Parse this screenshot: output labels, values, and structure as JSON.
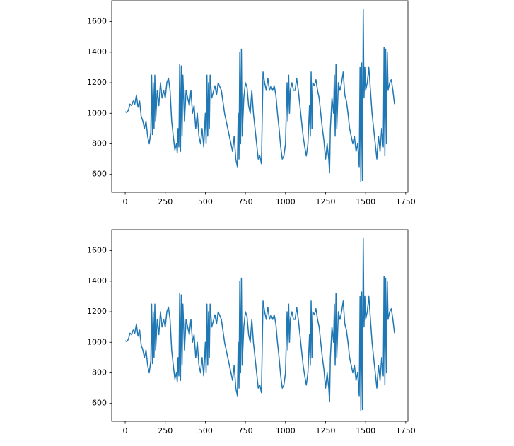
{
  "chart_data": [
    {
      "type": "line",
      "x": [
        0,
        10,
        20,
        30,
        40,
        50,
        60,
        70,
        80,
        90,
        100,
        110,
        120,
        130,
        140,
        150,
        160,
        165,
        170,
        175,
        180,
        185,
        190,
        200,
        210,
        220,
        230,
        240,
        250,
        260,
        270,
        280,
        290,
        300,
        310,
        320,
        325,
        330,
        335,
        340,
        345,
        350,
        355,
        360,
        370,
        380,
        390,
        400,
        410,
        420,
        430,
        440,
        450,
        460,
        470,
        480,
        490,
        500,
        505,
        510,
        515,
        520,
        525,
        530,
        540,
        560,
        570,
        580,
        600,
        620,
        640,
        660,
        670,
        680,
        690,
        700,
        705,
        710,
        715,
        720,
        725,
        730,
        740,
        750,
        760,
        770,
        780,
        790,
        800,
        810,
        820,
        830,
        840,
        850,
        860,
        870,
        880,
        890,
        900,
        910,
        920,
        930,
        940,
        950,
        960,
        970,
        980,
        990,
        1000,
        1010,
        1015,
        1020,
        1025,
        1030,
        1040,
        1050,
        1060,
        1070,
        1080,
        1090,
        1100,
        1110,
        1120,
        1130,
        1140,
        1150,
        1155,
        1160,
        1165,
        1170,
        1180,
        1190,
        1200,
        1210,
        1220,
        1230,
        1240,
        1250,
        1260,
        1270,
        1275,
        1280,
        1290,
        1300,
        1305,
        1310,
        1315,
        1320,
        1330,
        1340,
        1350,
        1360,
        1370,
        1380,
        1390,
        1400,
        1410,
        1420,
        1430,
        1440,
        1450,
        1460,
        1465,
        1470,
        1475,
        1480,
        1485,
        1490,
        1495,
        1500,
        1510,
        1520,
        1530,
        1540,
        1550,
        1560,
        1570,
        1580,
        1590,
        1600,
        1610,
        1615,
        1620,
        1625,
        1630,
        1635,
        1640,
        1650,
        1660,
        1670,
        1680
      ],
      "series": [
        {
          "color": "#1f77b4",
          "values": [
            1010,
            1005,
            1020,
            1060,
            1050,
            1080,
            1060,
            1120,
            1040,
            1080,
            980,
            950,
            900,
            950,
            850,
            800,
            880,
            1250,
            860,
            1200,
            900,
            1250,
            950,
            1150,
            1050,
            1200,
            1100,
            1150,
            1100,
            1200,
            1230,
            1150,
            950,
            850,
            760,
            800,
            740,
            900,
            780,
            1320,
            750,
            1310,
            850,
            1250,
            950,
            1150,
            1100,
            1050,
            1150,
            1000,
            1050,
            900,
            1000,
            850,
            800,
            900,
            780,
            1000,
            800,
            1250,
            850,
            1200,
            900,
            1250,
            1100,
            1180,
            1120,
            1200,
            1150,
            1000,
            900,
            800,
            750,
            850,
            700,
            650,
            1000,
            700,
            1400,
            800,
            1420,
            850,
            1100,
            1200,
            1170,
            1050,
            1000,
            1150,
            1000,
            900,
            800,
            700,
            720,
            670,
            1270,
            1200,
            1150,
            1230,
            1150,
            1180,
            1150,
            1180,
            1120,
            1000,
            900,
            780,
            700,
            720,
            800,
            1200,
            950,
            1250,
            1000,
            1150,
            1200,
            1150,
            1150,
            1230,
            1150,
            1050,
            950,
            850,
            780,
            720,
            800,
            1050,
            850,
            1270,
            900,
            1200,
            1180,
            1220,
            1150,
            1100,
            1000,
            900,
            820,
            700,
            800,
            700,
            610,
            900,
            1100,
            1000,
            1250,
            850,
            1320,
            900,
            1200,
            1150,
            1200,
            1270,
            1120,
            1080,
            1000,
            900,
            850,
            800,
            850,
            750,
            800,
            650,
            1300,
            550,
            1330,
            560,
            1680,
            1100,
            1300,
            1150,
            1200,
            1300,
            1150,
            1000,
            900,
            800,
            700,
            850,
            750,
            900,
            780,
            1430,
            720,
            1420,
            800,
            1400,
            1150,
            1200,
            1220,
            1150,
            1060
          ]
        }
      ],
      "xlim": [
        -84,
        1764
      ],
      "ylim": [
        483,
        1737
      ],
      "xticks": [
        0,
        250,
        500,
        750,
        1000,
        1250,
        1500,
        1750
      ],
      "yticks": [
        600,
        800,
        1000,
        1200,
        1400,
        1600
      ]
    },
    {
      "type": "line",
      "x": [
        0,
        10,
        20,
        30,
        40,
        50,
        60,
        70,
        80,
        90,
        100,
        110,
        120,
        130,
        140,
        150,
        160,
        165,
        170,
        175,
        180,
        185,
        190,
        200,
        210,
        220,
        230,
        240,
        250,
        260,
        270,
        280,
        290,
        300,
        310,
        320,
        325,
        330,
        335,
        340,
        345,
        350,
        355,
        360,
        370,
        380,
        390,
        400,
        410,
        420,
        430,
        440,
        450,
        460,
        470,
        480,
        490,
        500,
        505,
        510,
        515,
        520,
        525,
        530,
        540,
        560,
        570,
        580,
        600,
        620,
        640,
        660,
        670,
        680,
        690,
        700,
        705,
        710,
        715,
        720,
        725,
        730,
        740,
        750,
        760,
        770,
        780,
        790,
        800,
        810,
        820,
        830,
        840,
        850,
        860,
        870,
        880,
        890,
        900,
        910,
        920,
        930,
        940,
        950,
        960,
        970,
        980,
        990,
        1000,
        1010,
        1015,
        1020,
        1025,
        1030,
        1040,
        1050,
        1060,
        1070,
        1080,
        1090,
        1100,
        1110,
        1120,
        1130,
        1140,
        1150,
        1155,
        1160,
        1165,
        1170,
        1180,
        1190,
        1200,
        1210,
        1220,
        1230,
        1240,
        1250,
        1260,
        1270,
        1275,
        1280,
        1290,
        1300,
        1305,
        1310,
        1315,
        1320,
        1330,
        1340,
        1350,
        1360,
        1370,
        1380,
        1390,
        1400,
        1410,
        1420,
        1430,
        1440,
        1450,
        1460,
        1465,
        1470,
        1475,
        1480,
        1485,
        1490,
        1495,
        1500,
        1510,
        1520,
        1530,
        1540,
        1550,
        1560,
        1570,
        1580,
        1590,
        1600,
        1610,
        1615,
        1620,
        1625,
        1630,
        1635,
        1640,
        1650,
        1660,
        1670,
        1680
      ],
      "series": [
        {
          "color": "#1f77b4",
          "values": [
            1010,
            1005,
            1020,
            1060,
            1050,
            1080,
            1060,
            1120,
            1040,
            1080,
            980,
            950,
            900,
            950,
            850,
            800,
            880,
            1250,
            860,
            1200,
            900,
            1250,
            950,
            1150,
            1050,
            1200,
            1100,
            1150,
            1100,
            1200,
            1230,
            1150,
            950,
            850,
            760,
            800,
            740,
            900,
            780,
            1320,
            750,
            1310,
            850,
            1250,
            950,
            1150,
            1100,
            1050,
            1150,
            1000,
            1050,
            900,
            1000,
            850,
            800,
            900,
            780,
            1000,
            800,
            1250,
            850,
            1200,
            900,
            1250,
            1100,
            1180,
            1120,
            1200,
            1150,
            1000,
            900,
            800,
            750,
            850,
            700,
            650,
            1000,
            700,
            1400,
            800,
            1420,
            850,
            1100,
            1200,
            1170,
            1050,
            1000,
            1150,
            1000,
            900,
            800,
            700,
            720,
            670,
            1270,
            1200,
            1150,
            1230,
            1150,
            1180,
            1150,
            1180,
            1120,
            1000,
            900,
            780,
            700,
            720,
            800,
            1200,
            950,
            1250,
            1000,
            1150,
            1200,
            1150,
            1150,
            1230,
            1150,
            1050,
            950,
            850,
            780,
            720,
            800,
            1050,
            850,
            1270,
            900,
            1200,
            1180,
            1220,
            1150,
            1100,
            1000,
            900,
            820,
            700,
            800,
            700,
            610,
            900,
            1100,
            1000,
            1250,
            850,
            1320,
            900,
            1200,
            1150,
            1200,
            1270,
            1120,
            1080,
            1000,
            900,
            850,
            800,
            850,
            750,
            800,
            650,
            1300,
            550,
            1330,
            560,
            1680,
            1100,
            1300,
            1150,
            1200,
            1300,
            1150,
            1000,
            900,
            800,
            700,
            850,
            750,
            900,
            780,
            1430,
            720,
            1420,
            800,
            1400,
            1150,
            1200,
            1220,
            1150,
            1060
          ]
        }
      ],
      "xlim": [
        -84,
        1764
      ],
      "ylim": [
        483,
        1737
      ],
      "xticks": [
        0,
        250,
        500,
        750,
        1000,
        1250,
        1500,
        1750
      ],
      "yticks": [
        600,
        800,
        1000,
        1200,
        1400,
        1600
      ]
    }
  ]
}
